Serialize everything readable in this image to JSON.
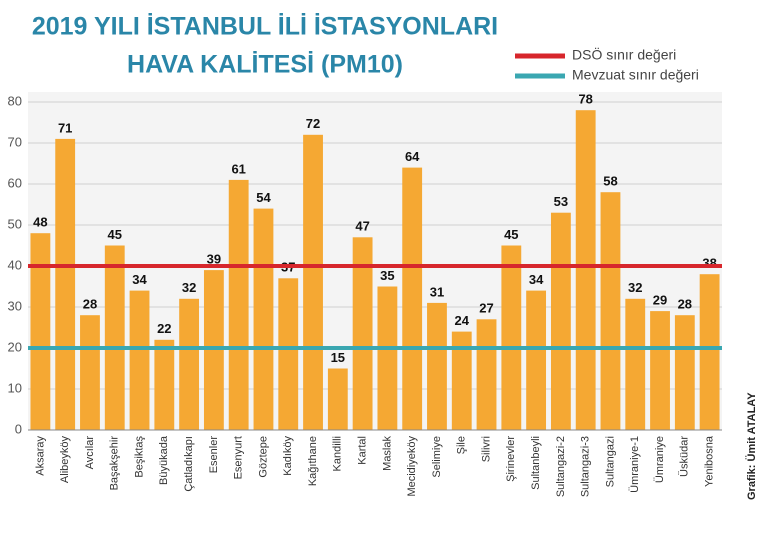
{
  "chart_data": {
    "type": "bar",
    "title": [
      "2019 YILI İSTANBUL İLİ İSTASYONLARI",
      "HAVA KALİTESİ (PM10)"
    ],
    "categories": [
      "Aksaray",
      "Alibeyköy",
      "Avcılar",
      "Başakşehir",
      "Beşiktaş",
      "Büyükada",
      "Çatladıkapı",
      "Esenler",
      "Esenyurt",
      "Göztepe",
      "Kadıköy",
      "Kağıthane",
      "Kandilli",
      "Kartal",
      "Maslak",
      "Mecidiyeköy",
      "Selimiye",
      "Şile",
      "Silivri",
      "Şirinevler",
      "Sultanbeyli",
      "Sultangazi-2",
      "Sultangazi-3",
      "Sultangazi",
      "Ümraniye-1",
      "Ümraniye",
      "Üsküdar",
      "Yenibosna"
    ],
    "values": [
      48,
      71,
      28,
      45,
      34,
      22,
      32,
      39,
      61,
      54,
      37,
      72,
      15,
      47,
      35,
      64,
      31,
      24,
      27,
      45,
      34,
      53,
      78,
      58,
      32,
      29,
      28,
      38
    ],
    "color": "#f5a833",
    "ylim": [
      0,
      80
    ],
    "yticks": [
      0,
      10,
      20,
      30,
      40,
      50,
      60,
      70,
      80
    ],
    "grid": true,
    "reference_lines": [
      {
        "name": "DSÖ sınır değeri",
        "value": 40,
        "color": "#d7262c"
      },
      {
        "name": "Mevzuat sınır değeri",
        "value": 20,
        "color": "#3aa7b1"
      }
    ],
    "legend": "top-right",
    "credit": "Grafik: Ümit ATALAY"
  }
}
